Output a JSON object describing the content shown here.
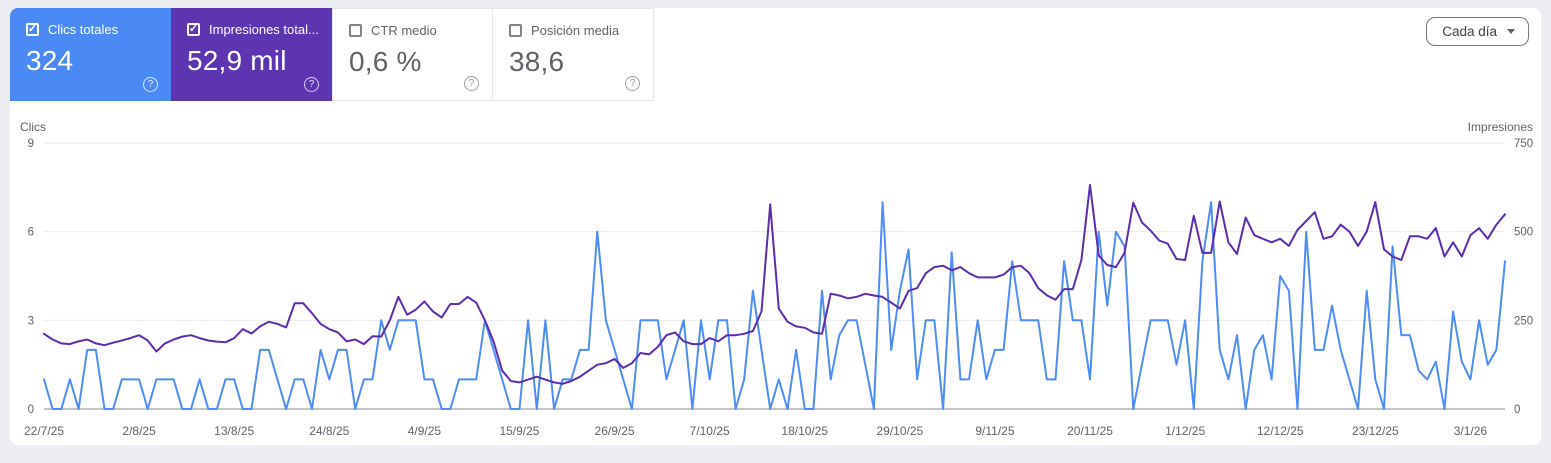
{
  "cards": [
    {
      "label": "Clics totales",
      "value": "324",
      "checked": true,
      "bg": "#4b8af5"
    },
    {
      "label": "Impresiones total...",
      "value": "52,9 mil",
      "checked": true,
      "bg": "#5e35b1"
    },
    {
      "label": "CTR medio",
      "value": "0,6 %",
      "checked": false,
      "bg": "#ffffff"
    },
    {
      "label": "Posición media",
      "value": "38,6",
      "checked": false,
      "bg": "#ffffff"
    }
  ],
  "period_selector": {
    "label": "Cada día"
  },
  "chart_data": {
    "type": "line",
    "grid": true,
    "left_axis": {
      "title": "Clics",
      "min": 0,
      "max": 9,
      "ticks": [
        0,
        3,
        6,
        9
      ]
    },
    "right_axis": {
      "title": "Impresiones",
      "min": 0,
      "max": 750,
      "ticks": [
        0,
        250,
        500,
        750
      ]
    },
    "x_tick_labels": [
      "22/7/25",
      "2/8/25",
      "13/8/25",
      "24/8/25",
      "4/9/25",
      "15/9/25",
      "26/9/25",
      "7/10/25",
      "18/10/25",
      "29/10/25",
      "9/11/25",
      "20/11/25",
      "1/12/25",
      "12/12/25",
      "23/12/25",
      "3/1/26"
    ],
    "x_tick_interval_days": 11,
    "series": [
      {
        "name": "Clics totales",
        "axis": "left",
        "color": "#4e8df5",
        "values": [
          1,
          0,
          0,
          1,
          0,
          2,
          2,
          0,
          0,
          1,
          1,
          1,
          0,
          1,
          1,
          1,
          0,
          0,
          1,
          0,
          0,
          1,
          1,
          0,
          0,
          2,
          2,
          1,
          0,
          1,
          1,
          0,
          2,
          1,
          2,
          2,
          0,
          1,
          1,
          3,
          2,
          3,
          3,
          3,
          1,
          1,
          0,
          0,
          1,
          1,
          1,
          3,
          2,
          1,
          0,
          0,
          3,
          0,
          3,
          0,
          1,
          1,
          2,
          2,
          6,
          3,
          2,
          1,
          0,
          3,
          3,
          3,
          1,
          2,
          3,
          0,
          3,
          1,
          3,
          3,
          0,
          1,
          4,
          2,
          0,
          1,
          0,
          2,
          0,
          0,
          4,
          1,
          2.5,
          3,
          3,
          1.5,
          0,
          7,
          2,
          4,
          5.4,
          1,
          3,
          3,
          0,
          5.3,
          1,
          1,
          3,
          1,
          2,
          2,
          5,
          3,
          3,
          3,
          1,
          1,
          5,
          3,
          3,
          1,
          6,
          3.5,
          6,
          5.5,
          0,
          1.5,
          3,
          3,
          3,
          1.5,
          3,
          0,
          5,
          7,
          2,
          1,
          2.5,
          0,
          2,
          2.5,
          1,
          4.5,
          4,
          0,
          6,
          2,
          2,
          3.5,
          2,
          1,
          0,
          4,
          1,
          0,
          5.5,
          2.5,
          2.5,
          1.3,
          1,
          1.6,
          0,
          3.3,
          1.6,
          1,
          3,
          1.5,
          2,
          5
        ]
      },
      {
        "name": "Impresiones totales",
        "axis": "right",
        "color": "#5e2cae",
        "values": [
          212,
          196,
          185,
          183,
          191,
          196,
          185,
          180,
          187,
          193,
          200,
          208,
          193,
          162,
          185,
          196,
          204,
          208,
          200,
          193,
          190,
          188,
          200,
          225,
          213,
          233,
          246,
          240,
          230,
          298,
          298,
          270,
          240,
          225,
          216,
          191,
          196,
          183,
          205,
          204,
          250,
          316,
          266,
          280,
          303,
          275,
          258,
          296,
          296,
          316,
          300,
          250,
          191,
          108,
          79,
          75,
          83,
          91,
          83,
          75,
          71,
          79,
          91,
          108,
          125,
          129,
          141,
          116,
          129,
          158,
          154,
          175,
          208,
          216,
          191,
          183,
          183,
          200,
          191,
          208,
          208,
          212,
          220,
          275,
          577,
          283,
          246,
          233,
          229,
          216,
          212,
          325,
          320,
          312,
          316,
          325,
          320,
          316,
          300,
          283,
          333,
          341,
          383,
          400,
          404,
          391,
          400,
          383,
          371,
          371,
          371,
          379,
          400,
          404,
          383,
          341,
          321,
          308,
          338,
          338,
          420,
          632,
          433,
          406,
          400,
          441,
          582,
          526,
          503,
          475,
          466,
          423,
          420,
          545,
          440,
          440,
          585,
          470,
          437,
          540,
          490,
          480,
          470,
          480,
          460,
          505,
          530,
          555,
          480,
          487,
          520,
          500,
          460,
          500,
          583,
          450,
          430,
          420,
          487,
          487,
          480,
          510,
          430,
          470,
          430,
          490,
          510,
          480,
          520,
          549
        ]
      }
    ]
  }
}
